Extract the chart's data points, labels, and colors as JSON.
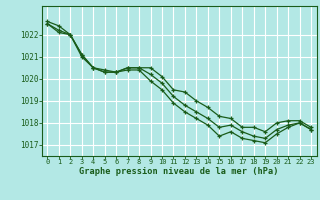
{
  "title": "Graphe pression niveau de la mer (hPa)",
  "background_color": "#b3e8e5",
  "grid_color": "#ffffff",
  "line_color": "#1a5c1a",
  "spine_color": "#1a5c1a",
  "hours": [
    0,
    1,
    2,
    3,
    4,
    5,
    6,
    7,
    8,
    9,
    10,
    11,
    12,
    13,
    14,
    15,
    16,
    17,
    18,
    19,
    20,
    21,
    22,
    23
  ],
  "line_top": [
    1022.6,
    1022.4,
    1022.0,
    1021.1,
    1020.5,
    1020.4,
    1020.3,
    1020.5,
    1020.5,
    1020.5,
    1020.1,
    1019.5,
    1019.4,
    1019.0,
    1018.7,
    1018.3,
    1018.2,
    1017.8,
    1017.8,
    1017.6,
    1018.0,
    1018.1,
    1018.1,
    1017.8
  ],
  "line_mid": [
    1022.5,
    1022.2,
    1022.0,
    1021.1,
    1020.5,
    1020.3,
    1020.3,
    1020.5,
    1020.5,
    1020.2,
    1019.8,
    1019.2,
    1018.8,
    1018.5,
    1018.2,
    1017.8,
    1017.9,
    1017.6,
    1017.4,
    1017.3,
    1017.7,
    1017.9,
    1018.0,
    1017.7
  ],
  "line_bot": [
    1022.5,
    1022.1,
    1022.0,
    1021.0,
    1020.5,
    1020.3,
    1020.3,
    1020.4,
    1020.4,
    1019.9,
    1019.5,
    1018.9,
    1018.5,
    1018.2,
    1017.9,
    1017.4,
    1017.6,
    1017.3,
    1017.2,
    1017.1,
    1017.5,
    1017.8,
    1018.0,
    1017.7
  ],
  "ylim_min": 1016.5,
  "ylim_max": 1023.3,
  "yticks": [
    1017,
    1018,
    1019,
    1020,
    1021,
    1022
  ],
  "xlim_min": -0.5,
  "xlim_max": 23.5
}
